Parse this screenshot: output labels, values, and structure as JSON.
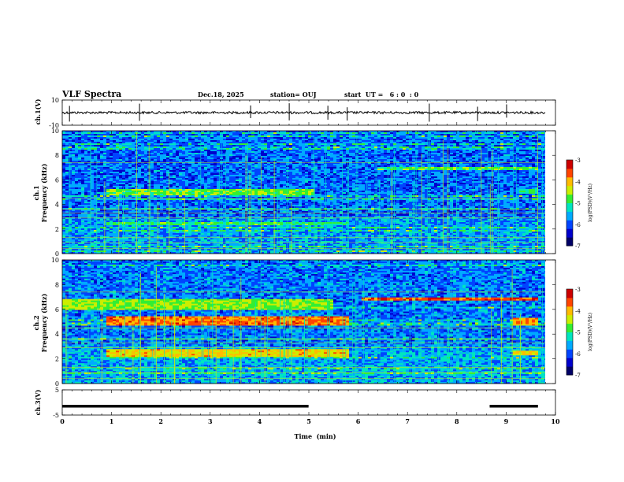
{
  "header": {
    "title": "VLF Spectra",
    "date": "Dec.18, 2025",
    "station": "station= OUJ",
    "start": "start  UT =   6 : 0  : 0"
  },
  "colors": {
    "colormap": [
      "#000066",
      "#0000cc",
      "#0044ff",
      "#00aaff",
      "#00e5c0",
      "#33ee33",
      "#ccee00",
      "#ffbb00",
      "#ff4400",
      "#cc0000"
    ]
  },
  "chart_data": [
    {
      "type": "line",
      "name": "ch1-waveform",
      "ylabel": "ch.1(V)",
      "ylim": [
        -10,
        10
      ],
      "ytick_labels": [
        "10",
        "-10"
      ],
      "xlim": [
        0,
        10
      ],
      "baseline": 0,
      "spikes_min": [
        0.15,
        1.6,
        3.9,
        4.7,
        5.5,
        5.9,
        7.6,
        8.6,
        9.2
      ],
      "trace_desc": "noisy flat line near 0 V with short spikes"
    },
    {
      "type": "heatmap",
      "name": "ch1-spectrogram",
      "ylabel": "ch.1\nFrequency  (kHz)",
      "ylabel_lines": [
        "ch.1",
        "Frequency  (kHz)"
      ],
      "ylim": [
        0,
        10
      ],
      "ytick_labels": [
        "0",
        "2",
        "4",
        "6",
        "8",
        "10"
      ],
      "xlim": [
        0,
        10
      ],
      "bands_khz": [
        {
          "f0": 4.8,
          "f1": 5.3,
          "t0": 0.9,
          "t1": 5.2,
          "level": 0.58
        },
        {
          "f0": 2.3,
          "f1": 2.6,
          "t0": 0.9,
          "t1": 5.9,
          "level": 0.52
        },
        {
          "f0": 6.8,
          "f1": 7.1,
          "t0": 6.5,
          "t1": 9.8,
          "level": 0.55
        },
        {
          "f0": 4.9,
          "f1": 5.2,
          "t0": 9.4,
          "t1": 9.8,
          "level": 0.5
        }
      ],
      "colorbar": {
        "label": "log(PSD)(V²/Hz)",
        "range": [
          -7,
          -3
        ],
        "tick_labels": [
          "-3",
          "-4",
          "-5",
          "-6",
          "-7"
        ]
      }
    },
    {
      "type": "heatmap",
      "name": "ch2-spectrogram",
      "ylabel": "ch.2\nFrequency  (kHz)",
      "ylabel_lines": [
        "ch.2",
        "Frequency  (kHz)"
      ],
      "ylim": [
        0,
        10
      ],
      "ytick_labels": [
        "0",
        "2",
        "4",
        "6",
        "8",
        "10"
      ],
      "xlim": [
        0,
        10
      ],
      "bands_khz": [
        {
          "f0": 4.7,
          "f1": 5.4,
          "t0": 0.9,
          "t1": 5.9,
          "level": 0.82
        },
        {
          "f0": 2.2,
          "f1": 2.8,
          "t0": 0.9,
          "t1": 5.9,
          "level": 0.72
        },
        {
          "f0": 6.0,
          "f1": 6.8,
          "t0": 0.0,
          "t1": 5.6,
          "level": 0.6
        },
        {
          "f0": 6.7,
          "f1": 7.0,
          "t0": 6.2,
          "t1": 9.8,
          "level": 0.85
        },
        {
          "f0": 4.7,
          "f1": 5.3,
          "t0": 9.3,
          "t1": 9.8,
          "level": 0.78
        },
        {
          "f0": 2.3,
          "f1": 2.7,
          "t0": 9.3,
          "t1": 9.8,
          "level": 0.7
        }
      ],
      "colorbar": {
        "label": "log(PSD)(V²/Hz)",
        "range": [
          -7,
          -3
        ],
        "tick_labels": [
          "-3",
          "-4",
          "-5",
          "-6",
          "-7"
        ]
      }
    },
    {
      "type": "line",
      "name": "ch3-trace",
      "ylabel": "ch.3(V)",
      "ylim": [
        -5,
        5
      ],
      "ytick_labels": [
        "5",
        "-5"
      ],
      "xlim": [
        0,
        10
      ],
      "xlabel": "Time  (min)",
      "xtick_labels": [
        "0",
        "1",
        "2",
        "3",
        "4",
        "5",
        "6",
        "7",
        "8",
        "9",
        "10"
      ],
      "segments": [
        {
          "t0": 0.0,
          "t1": 5.1,
          "v": -1.5
        },
        {
          "t0": 8.85,
          "t1": 9.85,
          "v": -1.5
        }
      ]
    }
  ]
}
